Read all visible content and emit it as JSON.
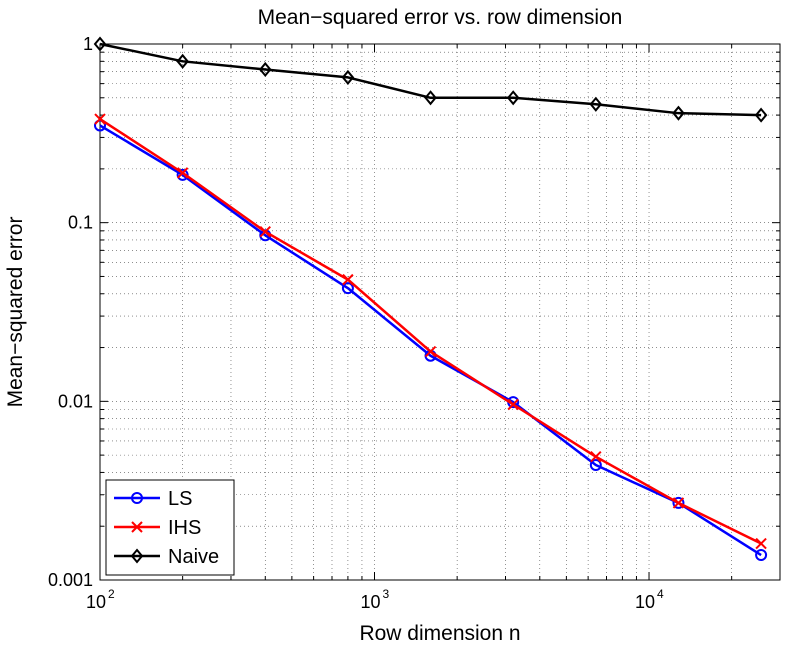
{
  "chart_data": {
    "type": "line",
    "title": "Mean−squared error vs. row dimension",
    "xlabel": "Row dimension n",
    "ylabel": "Mean−squared error",
    "xscale": "log",
    "yscale": "log",
    "xlim": [
      100,
      30000
    ],
    "ylim": [
      0.001,
      1
    ],
    "grid": true,
    "legend_position": "bottom-left",
    "x_ticks": [
      {
        "value": 100,
        "base": "10",
        "exp": "2"
      },
      {
        "value": 1000,
        "base": "10",
        "exp": "3"
      },
      {
        "value": 10000,
        "base": "10",
        "exp": "4"
      }
    ],
    "y_ticks": [
      {
        "value": 1,
        "label": "1"
      },
      {
        "value": 0.1,
        "label": "0.1"
      },
      {
        "value": 0.01,
        "label": "0.01"
      },
      {
        "value": 0.001,
        "label": "0.001"
      }
    ],
    "x": [
      100,
      200,
      400,
      800,
      1600,
      3200,
      6400,
      12800,
      25600
    ],
    "series": [
      {
        "name": "LS",
        "color": "#0000ff",
        "marker": "circle",
        "values": [
          0.35,
          0.185,
          0.085,
          0.043,
          0.018,
          0.0099,
          0.0044,
          0.0027,
          0.00138
        ]
      },
      {
        "name": "IHS",
        "color": "#ff0000",
        "marker": "x",
        "values": [
          0.38,
          0.19,
          0.089,
          0.048,
          0.019,
          0.0096,
          0.0049,
          0.0027,
          0.0016
        ]
      },
      {
        "name": "Naive",
        "color": "#000000",
        "marker": "diamond",
        "values": [
          1.0,
          0.8,
          0.72,
          0.65,
          0.5,
          0.5,
          0.46,
          0.41,
          0.4
        ]
      }
    ]
  }
}
